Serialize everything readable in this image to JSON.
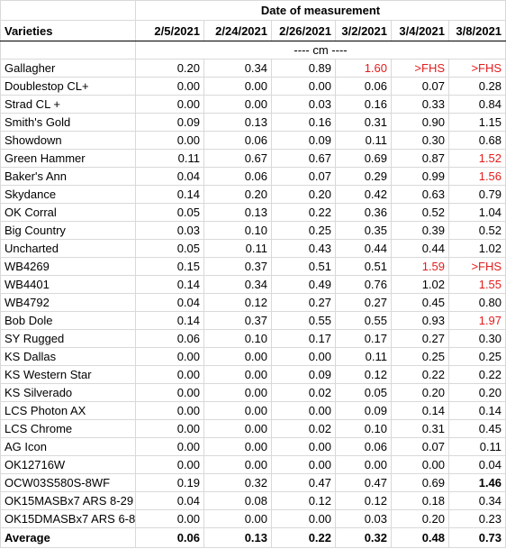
{
  "header": {
    "group_title": "Date of measurement",
    "variety_label": "Varieties",
    "dates": [
      "2/5/2021",
      "2/24/2021",
      "2/26/2021",
      "3/2/2021",
      "3/4/2021",
      "3/8/2021"
    ],
    "unit": "---- cm ----"
  },
  "rows": [
    {
      "name": "Gallagher",
      "values": [
        "0.20",
        "0.34",
        "0.89",
        "1.60",
        ">FHS",
        ">FHS"
      ],
      "red": [
        false,
        false,
        false,
        true,
        true,
        true
      ],
      "bold": [
        false,
        false,
        false,
        false,
        false,
        false
      ]
    },
    {
      "name": "Doublestop CL+",
      "values": [
        "0.00",
        "0.00",
        "0.00",
        "0.06",
        "0.07",
        "0.28"
      ],
      "red": [
        false,
        false,
        false,
        false,
        false,
        false
      ],
      "bold": [
        false,
        false,
        false,
        false,
        false,
        false
      ]
    },
    {
      "name": "Strad CL +",
      "values": [
        "0.00",
        "0.00",
        "0.03",
        "0.16",
        "0.33",
        "0.84"
      ],
      "red": [
        false,
        false,
        false,
        false,
        false,
        false
      ],
      "bold": [
        false,
        false,
        false,
        false,
        false,
        false
      ]
    },
    {
      "name": "Smith's Gold",
      "values": [
        "0.09",
        "0.13",
        "0.16",
        "0.31",
        "0.90",
        "1.15"
      ],
      "red": [
        false,
        false,
        false,
        false,
        false,
        false
      ],
      "bold": [
        false,
        false,
        false,
        false,
        false,
        false
      ]
    },
    {
      "name": "Showdown",
      "values": [
        "0.00",
        "0.06",
        "0.09",
        "0.11",
        "0.30",
        "0.68"
      ],
      "red": [
        false,
        false,
        false,
        false,
        false,
        false
      ],
      "bold": [
        false,
        false,
        false,
        false,
        false,
        false
      ]
    },
    {
      "name": "Green Hammer",
      "values": [
        "0.11",
        "0.67",
        "0.67",
        "0.69",
        "0.87",
        "1.52"
      ],
      "red": [
        false,
        false,
        false,
        false,
        false,
        true
      ],
      "bold": [
        false,
        false,
        false,
        false,
        false,
        false
      ]
    },
    {
      "name": "Baker's Ann",
      "values": [
        "0.04",
        "0.06",
        "0.07",
        "0.29",
        "0.99",
        "1.56"
      ],
      "red": [
        false,
        false,
        false,
        false,
        false,
        true
      ],
      "bold": [
        false,
        false,
        false,
        false,
        false,
        false
      ]
    },
    {
      "name": "Skydance",
      "values": [
        "0.14",
        "0.20",
        "0.20",
        "0.42",
        "0.63",
        "0.79"
      ],
      "red": [
        false,
        false,
        false,
        false,
        false,
        false
      ],
      "bold": [
        false,
        false,
        false,
        false,
        false,
        false
      ]
    },
    {
      "name": "OK Corral",
      "values": [
        "0.05",
        "0.13",
        "0.22",
        "0.36",
        "0.52",
        "1.04"
      ],
      "red": [
        false,
        false,
        false,
        false,
        false,
        false
      ],
      "bold": [
        false,
        false,
        false,
        false,
        false,
        false
      ]
    },
    {
      "name": "Big Country",
      "values": [
        "0.03",
        "0.10",
        "0.25",
        "0.35",
        "0.39",
        "0.52"
      ],
      "red": [
        false,
        false,
        false,
        false,
        false,
        false
      ],
      "bold": [
        false,
        false,
        false,
        false,
        false,
        false
      ]
    },
    {
      "name": "Uncharted",
      "values": [
        "0.05",
        "0.11",
        "0.43",
        "0.44",
        "0.44",
        "1.02"
      ],
      "red": [
        false,
        false,
        false,
        false,
        false,
        false
      ],
      "bold": [
        false,
        false,
        false,
        false,
        false,
        false
      ]
    },
    {
      "name": "WB4269",
      "values": [
        "0.15",
        "0.37",
        "0.51",
        "0.51",
        "1.59",
        ">FHS"
      ],
      "red": [
        false,
        false,
        false,
        false,
        true,
        true
      ],
      "bold": [
        false,
        false,
        false,
        false,
        false,
        false
      ]
    },
    {
      "name": "WB4401",
      "values": [
        "0.14",
        "0.34",
        "0.49",
        "0.76",
        "1.02",
        "1.55"
      ],
      "red": [
        false,
        false,
        false,
        false,
        false,
        true
      ],
      "bold": [
        false,
        false,
        false,
        false,
        false,
        false
      ]
    },
    {
      "name": "WB4792",
      "values": [
        "0.04",
        "0.12",
        "0.27",
        "0.27",
        "0.45",
        "0.80"
      ],
      "red": [
        false,
        false,
        false,
        false,
        false,
        false
      ],
      "bold": [
        false,
        false,
        false,
        false,
        false,
        false
      ]
    },
    {
      "name": "Bob Dole",
      "values": [
        "0.14",
        "0.37",
        "0.55",
        "0.55",
        "0.93",
        "1.97"
      ],
      "red": [
        false,
        false,
        false,
        false,
        false,
        true
      ],
      "bold": [
        false,
        false,
        false,
        false,
        false,
        false
      ]
    },
    {
      "name": "SY Rugged",
      "values": [
        "0.06",
        "0.10",
        "0.17",
        "0.17",
        "0.27",
        "0.30"
      ],
      "red": [
        false,
        false,
        false,
        false,
        false,
        false
      ],
      "bold": [
        false,
        false,
        false,
        false,
        false,
        false
      ]
    },
    {
      "name": "KS Dallas",
      "values": [
        "0.00",
        "0.00",
        "0.00",
        "0.11",
        "0.25",
        "0.25"
      ],
      "red": [
        false,
        false,
        false,
        false,
        false,
        false
      ],
      "bold": [
        false,
        false,
        false,
        false,
        false,
        false
      ]
    },
    {
      "name": "KS Western Star",
      "values": [
        "0.00",
        "0.00",
        "0.09",
        "0.12",
        "0.22",
        "0.22"
      ],
      "red": [
        false,
        false,
        false,
        false,
        false,
        false
      ],
      "bold": [
        false,
        false,
        false,
        false,
        false,
        false
      ]
    },
    {
      "name": "KS Silverado",
      "values": [
        "0.00",
        "0.00",
        "0.02",
        "0.05",
        "0.20",
        "0.20"
      ],
      "red": [
        false,
        false,
        false,
        false,
        false,
        false
      ],
      "bold": [
        false,
        false,
        false,
        false,
        false,
        false
      ]
    },
    {
      "name": "LCS Photon AX",
      "values": [
        "0.00",
        "0.00",
        "0.00",
        "0.09",
        "0.14",
        "0.14"
      ],
      "red": [
        false,
        false,
        false,
        false,
        false,
        false
      ],
      "bold": [
        false,
        false,
        false,
        false,
        false,
        false
      ]
    },
    {
      "name": "LCS Chrome",
      "values": [
        "0.00",
        "0.00",
        "0.02",
        "0.10",
        "0.31",
        "0.45"
      ],
      "red": [
        false,
        false,
        false,
        false,
        false,
        false
      ],
      "bold": [
        false,
        false,
        false,
        false,
        false,
        false
      ]
    },
    {
      "name": "AG Icon",
      "values": [
        "0.00",
        "0.00",
        "0.00",
        "0.06",
        "0.07",
        "0.11"
      ],
      "red": [
        false,
        false,
        false,
        false,
        false,
        false
      ],
      "bold": [
        false,
        false,
        false,
        false,
        false,
        false
      ]
    },
    {
      "name": "OK12716W",
      "values": [
        "0.00",
        "0.00",
        "0.00",
        "0.00",
        "0.00",
        "0.04"
      ],
      "red": [
        false,
        false,
        false,
        false,
        false,
        false
      ],
      "bold": [
        false,
        false,
        false,
        false,
        false,
        false
      ]
    },
    {
      "name": "OCW03S580S-8WF",
      "values": [
        "0.19",
        "0.32",
        "0.47",
        "0.47",
        "0.69",
        "1.46"
      ],
      "red": [
        false,
        false,
        false,
        false,
        false,
        false
      ],
      "bold": [
        false,
        false,
        false,
        false,
        false,
        true
      ]
    },
    {
      "name": "OK15MASBx7 ARS 8-29",
      "values": [
        "0.04",
        "0.08",
        "0.12",
        "0.12",
        "0.18",
        "0.34"
      ],
      "red": [
        false,
        false,
        false,
        false,
        false,
        false
      ],
      "bold": [
        false,
        false,
        false,
        false,
        false,
        false
      ]
    },
    {
      "name": "OK15DMASBx7 ARS 6-8",
      "values": [
        "0.00",
        "0.00",
        "0.00",
        "0.03",
        "0.20",
        "0.23"
      ],
      "red": [
        false,
        false,
        false,
        false,
        false,
        false
      ],
      "bold": [
        false,
        false,
        false,
        false,
        false,
        false
      ]
    }
  ],
  "average": {
    "label": "Average",
    "values": [
      "0.06",
      "0.13",
      "0.22",
      "0.32",
      "0.48",
      "0.73"
    ]
  }
}
